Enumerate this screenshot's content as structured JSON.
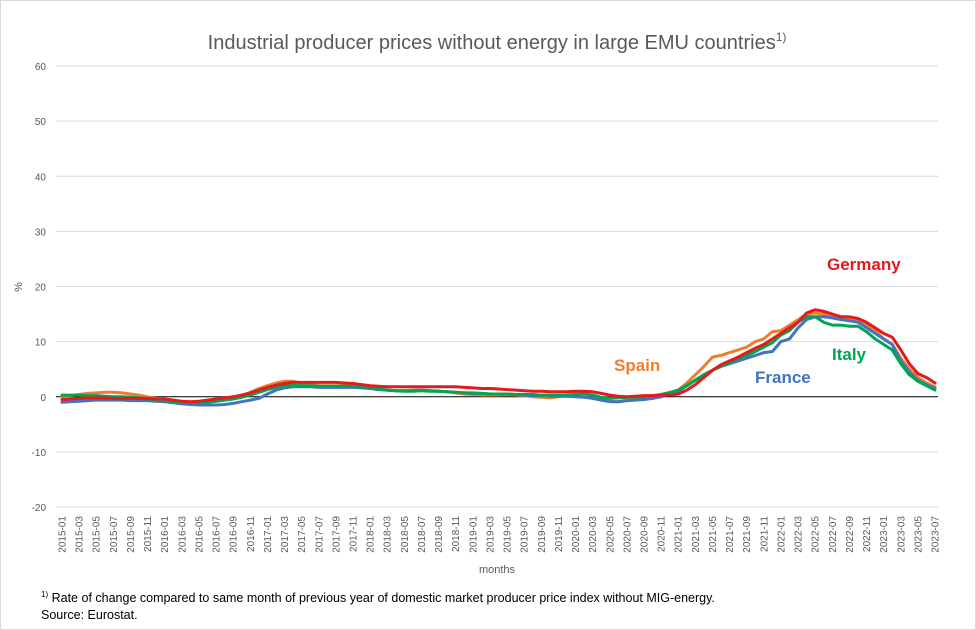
{
  "chart_data": {
    "type": "line",
    "title": "Industrial producer prices without energy in large EMU countries",
    "title_superscript": "1)",
    "xlabel": "months",
    "ylabel": "%",
    "ylim": [
      -20,
      60
    ],
    "yticks": [
      -20,
      -10,
      0,
      10,
      20,
      30,
      40,
      50,
      60
    ],
    "grid": true,
    "legend": "inline-labels",
    "x": [
      "2015-01",
      "2015-02",
      "2015-03",
      "2015-04",
      "2015-05",
      "2015-06",
      "2015-07",
      "2015-08",
      "2015-09",
      "2015-10",
      "2015-11",
      "2015-12",
      "2016-01",
      "2016-02",
      "2016-03",
      "2016-04",
      "2016-05",
      "2016-06",
      "2016-07",
      "2016-08",
      "2016-09",
      "2016-10",
      "2016-11",
      "2016-12",
      "2017-01",
      "2017-02",
      "2017-03",
      "2017-04",
      "2017-05",
      "2017-06",
      "2017-07",
      "2017-08",
      "2017-09",
      "2017-10",
      "2017-11",
      "2017-12",
      "2018-01",
      "2018-02",
      "2018-03",
      "2018-04",
      "2018-05",
      "2018-06",
      "2018-07",
      "2018-08",
      "2018-09",
      "2018-10",
      "2018-11",
      "2018-12",
      "2019-01",
      "2019-02",
      "2019-03",
      "2019-04",
      "2019-05",
      "2019-06",
      "2019-07",
      "2019-08",
      "2019-09",
      "2019-10",
      "2019-11",
      "2019-12",
      "2020-01",
      "2020-02",
      "2020-03",
      "2020-04",
      "2020-05",
      "2020-06",
      "2020-07",
      "2020-08",
      "2020-09",
      "2020-10",
      "2020-11",
      "2020-12",
      "2021-01",
      "2021-02",
      "2021-03",
      "2021-04",
      "2021-05",
      "2021-06",
      "2021-07",
      "2021-08",
      "2021-09",
      "2021-10",
      "2021-11",
      "2021-12",
      "2022-01",
      "2022-02",
      "2022-03",
      "2022-04",
      "2022-05",
      "2022-06",
      "2022-07",
      "2022-08",
      "2022-09",
      "2022-10",
      "2022-11",
      "2022-12",
      "2023-01",
      "2023-02",
      "2023-03",
      "2023-04",
      "2023-05",
      "2023-06",
      "2023-07"
    ],
    "xtick_labels": [
      "2015-01",
      "2015-03",
      "2015-05",
      "2015-07",
      "2015-09",
      "2015-11",
      "2016-01",
      "2016-03",
      "2016-05",
      "2016-07",
      "2016-09",
      "2016-11",
      "2017-01",
      "2017-03",
      "2017-05",
      "2017-07",
      "2017-09",
      "2017-11",
      "2018-01",
      "2018-03",
      "2018-05",
      "2018-07",
      "2018-09",
      "2018-11",
      "2019-01",
      "2019-03",
      "2019-05",
      "2019-07",
      "2019-09",
      "2019-11",
      "2020-01",
      "2020-03",
      "2020-05",
      "2020-07",
      "2020-09",
      "2020-11",
      "2021-01",
      "2021-03",
      "2021-05",
      "2021-07",
      "2021-09",
      "2021-11",
      "2022-01",
      "2022-03",
      "2022-05",
      "2022-07",
      "2022-09",
      "2022-11",
      "2023-01",
      "2023-03",
      "2023-05",
      "2023-07"
    ],
    "series": [
      {
        "name": "Spain",
        "color": "#ed7d31",
        "values": [
          0.0,
          0.2,
          0.4,
          0.6,
          0.7,
          0.8,
          0.8,
          0.7,
          0.5,
          0.3,
          0.0,
          -0.3,
          -0.5,
          -0.8,
          -1.0,
          -1.1,
          -1.0,
          -0.8,
          -0.6,
          -0.4,
          -0.2,
          0.2,
          0.8,
          1.5,
          2.0,
          2.5,
          2.8,
          2.8,
          2.5,
          2.2,
          2.0,
          2.0,
          2.0,
          2.0,
          2.0,
          1.8,
          1.6,
          1.4,
          1.2,
          1.1,
          1.1,
          1.2,
          1.2,
          1.1,
          1.0,
          0.9,
          0.7,
          0.5,
          0.4,
          0.3,
          0.3,
          0.3,
          0.4,
          0.3,
          0.2,
          0.0,
          -0.1,
          -0.2,
          0.0,
          0.3,
          0.5,
          0.5,
          0.3,
          -0.4,
          -0.8,
          -0.9,
          -0.6,
          -0.5,
          -0.3,
          0.0,
          0.4,
          0.8,
          1.2,
          2.5,
          4.0,
          5.5,
          7.2,
          7.5,
          8.0,
          8.5,
          9.0,
          10.0,
          10.5,
          11.8,
          12.0,
          13.0,
          14.0,
          15.0,
          15.2,
          15.0,
          14.5,
          14.2,
          14.0,
          13.8,
          13.0,
          12.0,
          10.5,
          9.5,
          7.0,
          5.0,
          3.5,
          2.5,
          1.8
        ]
      },
      {
        "name": "France",
        "color": "#4472c4",
        "values": [
          -1.0,
          -0.9,
          -0.8,
          -0.7,
          -0.6,
          -0.6,
          -0.6,
          -0.6,
          -0.7,
          -0.7,
          -0.7,
          -0.8,
          -0.9,
          -1.1,
          -1.3,
          -1.4,
          -1.5,
          -1.5,
          -1.5,
          -1.4,
          -1.2,
          -0.9,
          -0.6,
          -0.3,
          0.5,
          1.2,
          1.6,
          1.8,
          1.8,
          1.8,
          1.7,
          1.7,
          1.7,
          1.7,
          1.7,
          1.6,
          1.5,
          1.3,
          1.2,
          1.1,
          1.1,
          1.1,
          1.2,
          1.1,
          1.0,
          0.9,
          0.8,
          0.7,
          0.6,
          0.6,
          0.5,
          0.5,
          0.5,
          0.4,
          0.3,
          0.2,
          0.2,
          0.1,
          0.1,
          0.1,
          0.0,
          -0.1,
          -0.3,
          -0.6,
          -0.9,
          -0.9,
          -0.7,
          -0.6,
          -0.5,
          -0.3,
          0.0,
          0.5,
          1.0,
          2.0,
          3.0,
          4.0,
          4.8,
          5.5,
          6.0,
          6.5,
          7.0,
          7.5,
          8.0,
          8.2,
          10.0,
          10.5,
          12.5,
          14.0,
          14.5,
          14.5,
          14.3,
          14.0,
          13.8,
          13.5,
          12.5,
          11.5,
          10.5,
          9.5,
          6.5,
          4.5,
          3.0,
          2.2,
          1.5
        ]
      },
      {
        "name": "Italy",
        "color": "#00a550",
        "values": [
          0.3,
          0.3,
          0.3,
          0.2,
          0.2,
          0.1,
          0.0,
          0.0,
          -0.1,
          -0.2,
          -0.4,
          -0.6,
          -0.7,
          -0.9,
          -1.0,
          -1.1,
          -1.1,
          -1.0,
          -0.8,
          -0.6,
          -0.4,
          -0.1,
          0.3,
          0.8,
          1.3,
          1.7,
          2.0,
          2.1,
          2.0,
          2.0,
          1.9,
          1.9,
          1.9,
          1.9,
          1.9,
          1.8,
          1.6,
          1.4,
          1.2,
          1.1,
          1.0,
          1.0,
          1.1,
          1.0,
          1.0,
          0.9,
          0.8,
          0.7,
          0.7,
          0.6,
          0.5,
          0.5,
          0.5,
          0.4,
          0.4,
          0.4,
          0.3,
          0.3,
          0.3,
          0.3,
          0.4,
          0.5,
          0.3,
          -0.1,
          -0.3,
          -0.2,
          -0.1,
          -0.1,
          0.0,
          0.2,
          0.4,
          0.7,
          1.2,
          2.0,
          3.0,
          4.0,
          4.8,
          5.5,
          6.2,
          7.0,
          7.5,
          8.2,
          9.0,
          9.8,
          11.2,
          12.0,
          13.5,
          14.5,
          14.5,
          13.5,
          13.0,
          13.0,
          12.8,
          12.8,
          11.8,
          10.5,
          9.5,
          8.5,
          6.0,
          4.0,
          2.8,
          2.0,
          1.2
        ]
      },
      {
        "name": "Germany",
        "color": "#e41a1c",
        "values": [
          -0.5,
          -0.4,
          -0.3,
          -0.2,
          -0.2,
          -0.2,
          -0.3,
          -0.3,
          -0.3,
          -0.3,
          -0.3,
          -0.4,
          -0.4,
          -0.6,
          -0.8,
          -0.9,
          -0.8,
          -0.6,
          -0.4,
          -0.2,
          0.0,
          0.3,
          0.7,
          1.2,
          1.7,
          2.1,
          2.4,
          2.6,
          2.6,
          2.6,
          2.6,
          2.6,
          2.6,
          2.5,
          2.4,
          2.2,
          2.0,
          1.9,
          1.8,
          1.8,
          1.8,
          1.8,
          1.8,
          1.8,
          1.8,
          1.8,
          1.8,
          1.7,
          1.6,
          1.5,
          1.5,
          1.4,
          1.3,
          1.2,
          1.1,
          1.0,
          1.0,
          0.9,
          0.9,
          0.9,
          1.0,
          1.0,
          0.9,
          0.6,
          0.3,
          0.1,
          0.0,
          0.1,
          0.2,
          0.2,
          0.3,
          0.3,
          0.5,
          1.2,
          2.2,
          3.5,
          4.8,
          5.8,
          6.5,
          7.2,
          8.0,
          8.8,
          9.5,
          10.5,
          11.5,
          12.5,
          13.5,
          15.2,
          15.8,
          15.5,
          15.0,
          14.5,
          14.5,
          14.2,
          13.5,
          12.5,
          11.5,
          10.8,
          8.5,
          6.0,
          4.2,
          3.5,
          2.5
        ]
      }
    ],
    "annotations": [
      {
        "text": "Germany",
        "series": "Germany"
      },
      {
        "text": "Spain",
        "series": "Spain"
      },
      {
        "text": "France",
        "series": "France"
      },
      {
        "text": "Italy",
        "series": "Italy"
      }
    ]
  },
  "footnotes": {
    "marker": "1)",
    "note": "Rate of change compared to same month of previous year of domestic market producer price index without MIG-energy.",
    "source": "Source: Eurostat."
  }
}
